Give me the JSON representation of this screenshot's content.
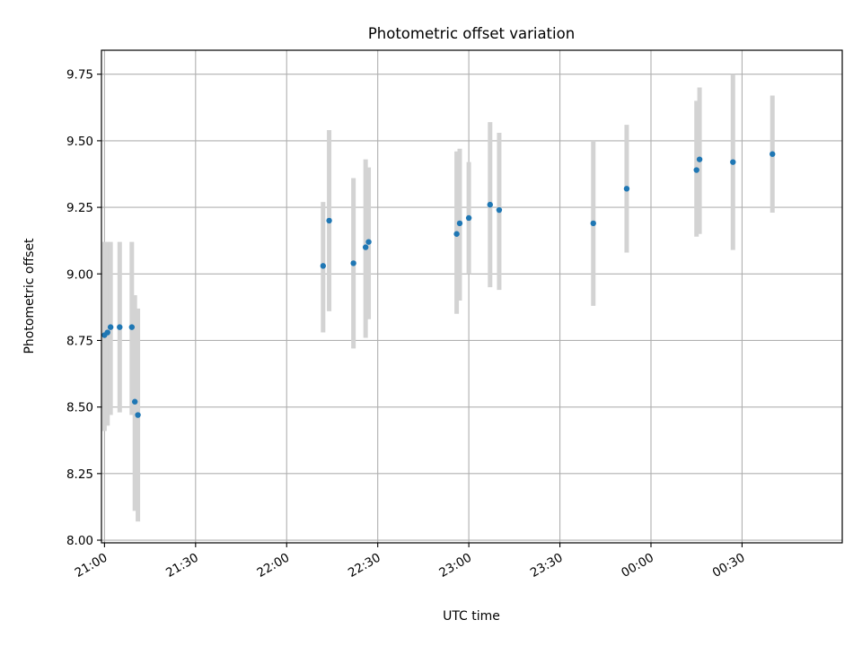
{
  "chart_data": {
    "type": "scatter",
    "title": "Photometric offset variation",
    "xlabel": "UTC time",
    "ylabel": "Photometric offset",
    "x_tick_labels": [
      "21:00",
      "21:30",
      "22:00",
      "22:30",
      "23:00",
      "23:30",
      "00:00",
      "00:30"
    ],
    "x_tick_times": [
      "21:00",
      "21:30",
      "22:00",
      "22:30",
      "23:00",
      "23:30",
      "00:00",
      "00:30"
    ],
    "xlim": [
      "20:59",
      "01:03"
    ],
    "y_tick_labels": [
      "8.00",
      "8.25",
      "8.50",
      "8.75",
      "9.00",
      "9.25",
      "9.50",
      "9.75"
    ],
    "y_tick_values": [
      8.0,
      8.25,
      8.5,
      8.75,
      9.0,
      9.25,
      9.5,
      9.75
    ],
    "ylim": [
      7.99,
      9.84
    ],
    "grid": true,
    "marker_color": "#1f77b4",
    "errorbar_color": "#d3d3d3",
    "points": [
      {
        "time": "21:00",
        "y": 8.77,
        "ylow": 8.41,
        "yhigh": 9.12
      },
      {
        "time": "21:01",
        "y": 8.78,
        "ylow": 8.43,
        "yhigh": 9.12
      },
      {
        "time": "21:02",
        "y": 8.8,
        "ylow": 8.47,
        "yhigh": 9.12
      },
      {
        "time": "21:05",
        "y": 8.8,
        "ylow": 8.48,
        "yhigh": 9.12
      },
      {
        "time": "21:09",
        "y": 8.8,
        "ylow": 8.47,
        "yhigh": 9.12
      },
      {
        "time": "21:10",
        "y": 8.52,
        "ylow": 8.11,
        "yhigh": 8.92
      },
      {
        "time": "21:11",
        "y": 8.47,
        "ylow": 8.07,
        "yhigh": 8.87
      },
      {
        "time": "22:12",
        "y": 9.03,
        "ylow": 8.78,
        "yhigh": 9.27
      },
      {
        "time": "22:14",
        "y": 9.2,
        "ylow": 8.86,
        "yhigh": 9.54
      },
      {
        "time": "22:22",
        "y": 9.04,
        "ylow": 8.72,
        "yhigh": 9.36
      },
      {
        "time": "22:26",
        "y": 9.1,
        "ylow": 8.76,
        "yhigh": 9.43
      },
      {
        "time": "22:27",
        "y": 9.12,
        "ylow": 8.83,
        "yhigh": 9.4
      },
      {
        "time": "22:56",
        "y": 9.15,
        "ylow": 8.85,
        "yhigh": 9.46
      },
      {
        "time": "22:57",
        "y": 9.19,
        "ylow": 8.9,
        "yhigh": 9.47
      },
      {
        "time": "23:00",
        "y": 9.21,
        "ylow": 9.0,
        "yhigh": 9.42
      },
      {
        "time": "23:07",
        "y": 9.26,
        "ylow": 8.95,
        "yhigh": 9.57
      },
      {
        "time": "23:10",
        "y": 9.24,
        "ylow": 8.94,
        "yhigh": 9.53
      },
      {
        "time": "23:41",
        "y": 9.19,
        "ylow": 8.88,
        "yhigh": 9.5
      },
      {
        "time": "23:52",
        "y": 9.32,
        "ylow": 9.08,
        "yhigh": 9.56
      },
      {
        "time": "00:15",
        "y": 9.39,
        "ylow": 9.14,
        "yhigh": 9.65
      },
      {
        "time": "00:16",
        "y": 9.43,
        "ylow": 9.15,
        "yhigh": 9.7
      },
      {
        "time": "00:27",
        "y": 9.42,
        "ylow": 9.09,
        "yhigh": 9.75
      },
      {
        "time": "00:40",
        "y": 9.45,
        "ylow": 9.23,
        "yhigh": 9.67
      }
    ]
  }
}
